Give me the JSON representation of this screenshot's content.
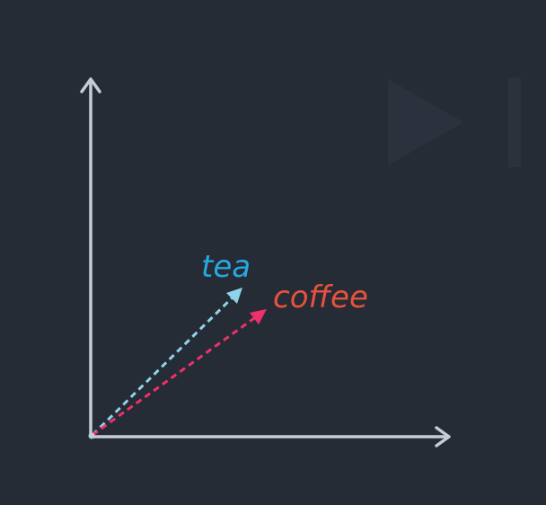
{
  "colors": {
    "background": "#252c36",
    "axis": "#c6ccd6",
    "watermark": "#2b323d",
    "tea": "#29a8e0",
    "tea_arrow": "#8fd3ea",
    "coffee": "#e9513d",
    "coffee_arrow": "#f0306a"
  },
  "icons": {
    "watermark": "play-icon"
  },
  "vectors": [
    {
      "id": "tea",
      "label": "tea"
    },
    {
      "id": "coffee",
      "label": "coffee"
    }
  ]
}
